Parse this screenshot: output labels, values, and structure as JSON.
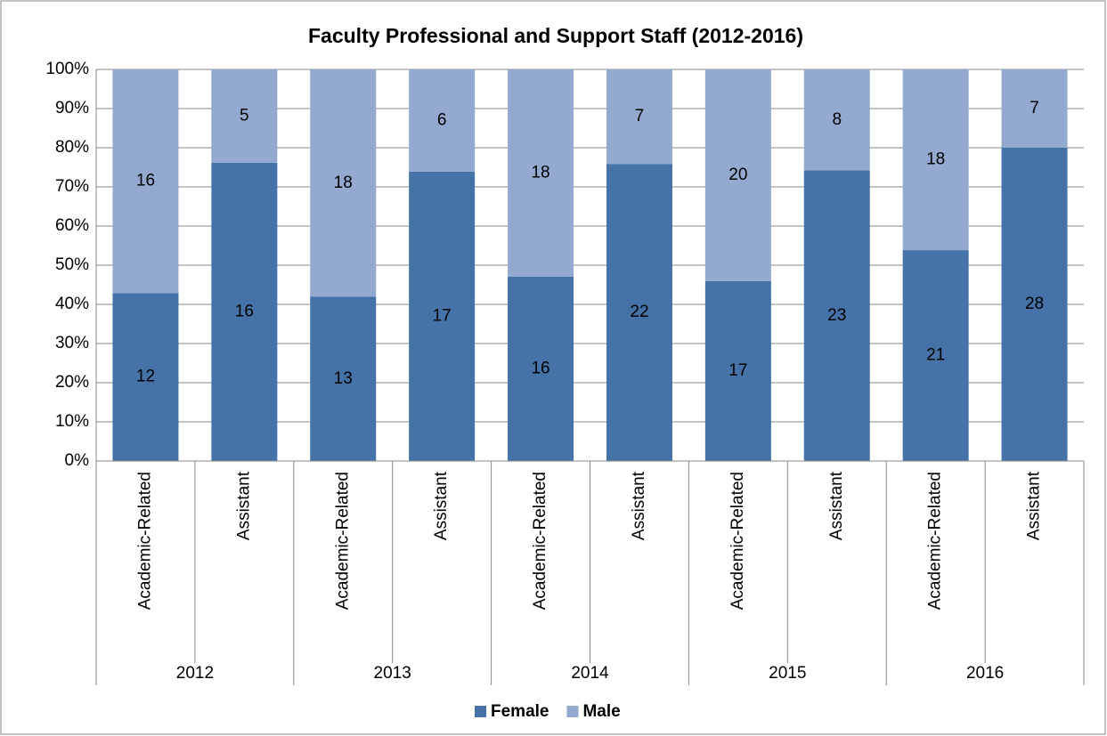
{
  "chart_data": {
    "type": "bar",
    "stacking": "percent",
    "title": "Faculty Professional and Support Staff (2012-2016)",
    "categories": [
      "Academic-Related",
      "Assistant",
      "Academic-Related",
      "Assistant",
      "Academic-Related",
      "Assistant",
      "Academic-Related",
      "Assistant",
      "Academic-Related",
      "Assistant"
    ],
    "groups": [
      "2012",
      "2013",
      "2014",
      "2015",
      "2016"
    ],
    "series": [
      {
        "name": "Female",
        "color": "#4572a7",
        "values": [
          12,
          16,
          13,
          17,
          16,
          22,
          17,
          23,
          21,
          28
        ]
      },
      {
        "name": "Male",
        "color": "#93a9cf",
        "values": [
          16,
          5,
          18,
          6,
          18,
          7,
          20,
          8,
          18,
          7
        ]
      }
    ],
    "ylim": [
      0,
      100
    ],
    "yticks": [
      {
        "value": 0,
        "label": "0%"
      },
      {
        "value": 10,
        "label": "10%"
      },
      {
        "value": 20,
        "label": "20%"
      },
      {
        "value": 30,
        "label": "30%"
      },
      {
        "value": 40,
        "label": "40%"
      },
      {
        "value": 50,
        "label": "50%"
      },
      {
        "value": 60,
        "label": "60%"
      },
      {
        "value": 70,
        "label": "70%"
      },
      {
        "value": 80,
        "label": "80%"
      },
      {
        "value": 90,
        "label": "90%"
      },
      {
        "value": 100,
        "label": "100%"
      }
    ],
    "grid": true,
    "legend": "bottom"
  }
}
